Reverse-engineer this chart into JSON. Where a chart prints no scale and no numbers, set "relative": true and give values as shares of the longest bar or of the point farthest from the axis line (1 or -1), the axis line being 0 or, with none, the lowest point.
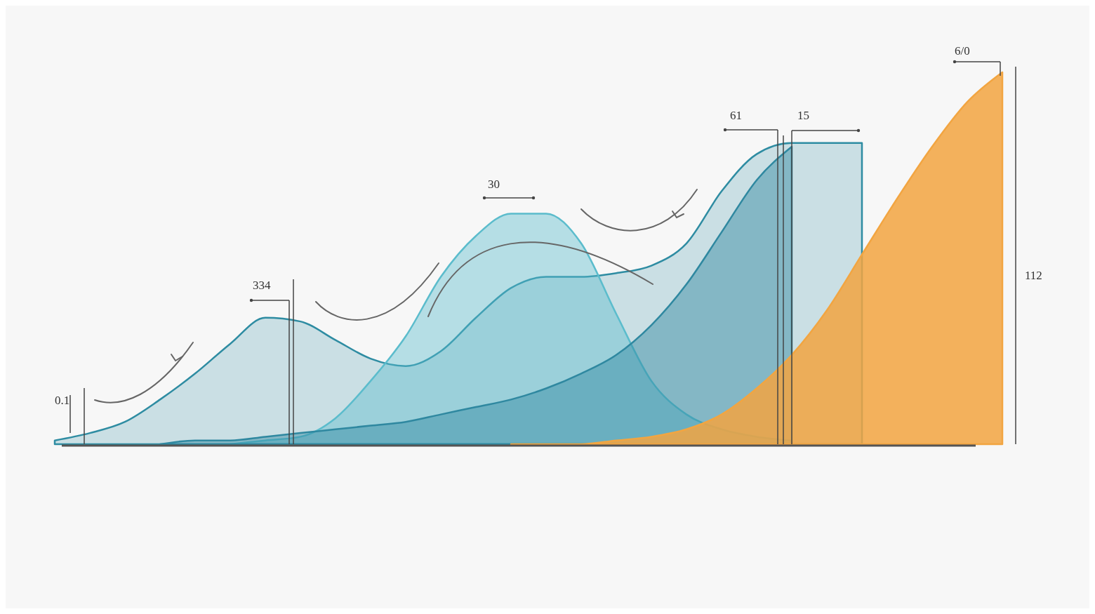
{
  "chart_data": {
    "type": "area",
    "relative": true,
    "tick_labels": false,
    "categories": [
      null,
      null,
      null,
      null,
      null,
      null,
      null,
      null,
      null,
      null,
      null,
      null,
      null,
      null,
      null,
      null,
      null,
      null,
      null,
      null,
      null,
      null,
      null,
      null,
      null,
      null,
      null,
      null
    ],
    "series": [
      {
        "color": "#2e8ca2",
        "values": [
          0.01,
          0.03,
          0.06,
          0.12,
          0.19,
          0.27,
          0.34,
          0.33,
          0.28,
          0.23,
          0.21,
          0.25,
          0.34,
          0.42,
          0.45,
          0.45,
          0.46,
          0.48,
          0.54,
          0.68,
          0.78,
          0.81,
          0.81,
          0.81,
          null,
          null,
          null,
          null
        ]
      },
      {
        "color": "#5bbccc",
        "values": [
          null,
          null,
          null,
          null,
          null,
          0,
          0.01,
          0.02,
          0.07,
          0.17,
          0.29,
          0.45,
          0.56,
          0.62,
          0.62,
          0.54,
          0.35,
          0.17,
          0.08,
          0.04,
          0.02,
          0.01,
          null,
          null,
          null,
          null,
          null,
          null
        ]
      },
      {
        "color": "#2f88a0",
        "values": [
          null,
          null,
          null,
          0,
          0.01,
          0.01,
          0.02,
          0.03,
          0.04,
          0.05,
          0.06,
          0.08,
          0.1,
          0.12,
          0.15,
          0.19,
          0.24,
          0.32,
          0.43,
          0.57,
          0.71,
          0.8,
          null,
          null,
          null,
          null,
          null,
          null
        ]
      },
      {
        "color": "#f2a541",
        "values": [
          null,
          null,
          null,
          null,
          null,
          null,
          null,
          null,
          null,
          null,
          null,
          null,
          null,
          0,
          0,
          0,
          0.01,
          0.02,
          0.04,
          0.08,
          0.15,
          0.24,
          0.36,
          0.51,
          0.66,
          0.8,
          0.92,
          1
        ]
      }
    ],
    "annotations": [
      "0.1",
      "334",
      "30",
      "61",
      "15",
      "6/0",
      "112"
    ]
  }
}
